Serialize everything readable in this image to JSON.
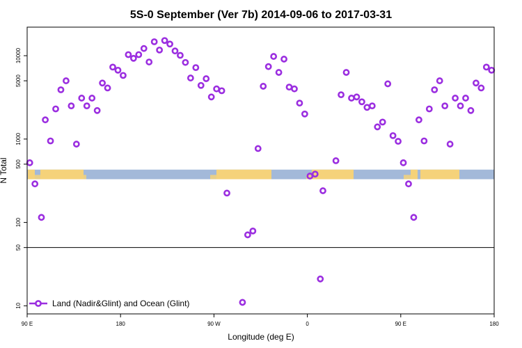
{
  "chart_data": {
    "type": "scatter",
    "title": "5S-0 September (Ver 7b)   2014-09-06 to 2017-03-31",
    "xlabel": "Longitude (deg E)",
    "ylabel": "N Total",
    "yscale": "log",
    "xlim": [
      0,
      360
    ],
    "ylim": [
      8,
      22000
    ],
    "x_ticks": [
      {
        "pos": 0,
        "label": "90 E"
      },
      {
        "pos": 72,
        "label": "180"
      },
      {
        "pos": 144,
        "label": "90 W"
      },
      {
        "pos": 216,
        "label": "0"
      },
      {
        "pos": 288,
        "label": "90 E"
      },
      {
        "pos": 360,
        "label": "180"
      }
    ],
    "y_ticks": [
      {
        "value": 10,
        "label": "10"
      },
      {
        "value": 50,
        "label": "50"
      },
      {
        "value": 100,
        "label": "100"
      },
      {
        "value": 500,
        "label": "500"
      },
      {
        "value": 1000,
        "label": "1000"
      },
      {
        "value": 5000,
        "label": "5000"
      },
      {
        "value": 10000,
        "label": "10000"
      }
    ],
    "reference_line": 50,
    "land_band": {
      "ymin": 330,
      "ymax": 430,
      "ocean_color": "#a3b9d9",
      "land_color": "#f5d27a"
    },
    "legend": {
      "label": "Land (Nadir&Glint) and Ocean (Glint)",
      "position": "bottom-left"
    },
    "series": [
      {
        "name": "Land (Nadir&Glint) and Ocean (Glint)",
        "color": "#9b2ee0",
        "points": [
          [
            2,
            520
          ],
          [
            6,
            290
          ],
          [
            11,
            115
          ],
          [
            14,
            1700
          ],
          [
            18,
            950
          ],
          [
            22,
            2300
          ],
          [
            26,
            3900
          ],
          [
            30,
            5000
          ],
          [
            34,
            2500
          ],
          [
            38,
            870
          ],
          [
            42,
            3100
          ],
          [
            46,
            2500
          ],
          [
            50,
            3100
          ],
          [
            54,
            2200
          ],
          [
            58,
            4700
          ],
          [
            62,
            4100
          ],
          [
            66,
            7300
          ],
          [
            70,
            6700
          ],
          [
            74,
            5800
          ],
          [
            78,
            10300
          ],
          [
            82,
            9300
          ],
          [
            86,
            10300
          ],
          [
            90,
            12200
          ],
          [
            94,
            8400
          ],
          [
            98,
            14700
          ],
          [
            102,
            11700
          ],
          [
            106,
            15200
          ],
          [
            110,
            13800
          ],
          [
            114,
            11400
          ],
          [
            118,
            10100
          ],
          [
            122,
            8300
          ],
          [
            126,
            5400
          ],
          [
            130,
            7200
          ],
          [
            134,
            4400
          ],
          [
            138,
            5300
          ],
          [
            142,
            3200
          ],
          [
            146,
            4000
          ],
          [
            150,
            3800
          ],
          [
            154,
            225
          ],
          [
            166,
            11
          ],
          [
            170,
            71
          ],
          [
            174,
            79
          ],
          [
            178,
            770
          ],
          [
            182,
            4300
          ],
          [
            186,
            7400
          ],
          [
            190,
            9800
          ],
          [
            194,
            6300
          ],
          [
            198,
            9100
          ],
          [
            202,
            4200
          ],
          [
            206,
            4000
          ],
          [
            210,
            2700
          ],
          [
            214,
            2000
          ],
          [
            218,
            360
          ],
          [
            222,
            380
          ],
          [
            226,
            21
          ],
          [
            228,
            240
          ],
          [
            238,
            550
          ],
          [
            242,
            3400
          ],
          [
            246,
            6300
          ],
          [
            250,
            3100
          ],
          [
            254,
            3200
          ],
          [
            258,
            2800
          ],
          [
            262,
            2400
          ],
          [
            266,
            2500
          ],
          [
            270,
            1400
          ],
          [
            274,
            1600
          ],
          [
            278,
            4600
          ],
          [
            282,
            1100
          ],
          [
            286,
            940
          ],
          [
            290,
            520
          ],
          [
            294,
            290
          ],
          [
            298,
            115
          ],
          [
            302,
            1700
          ],
          [
            306,
            950
          ],
          [
            310,
            2300
          ],
          [
            314,
            3900
          ],
          [
            318,
            5000
          ],
          [
            322,
            2500
          ],
          [
            326,
            870
          ],
          [
            330,
            3100
          ],
          [
            334,
            2500
          ],
          [
            338,
            3100
          ],
          [
            342,
            2200
          ],
          [
            346,
            4700
          ],
          [
            350,
            4100
          ],
          [
            354,
            7300
          ],
          [
            358,
            6700
          ]
        ]
      }
    ]
  }
}
